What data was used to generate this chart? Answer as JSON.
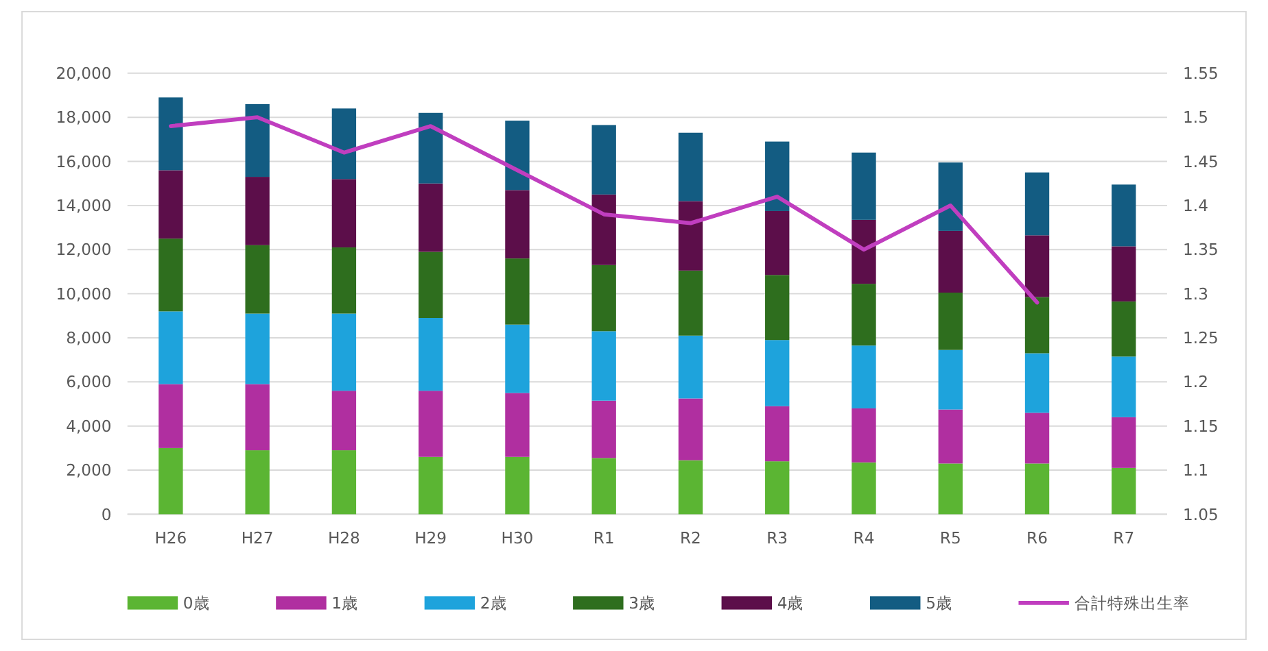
{
  "chart_data": {
    "type": "bar",
    "stacked": true,
    "categories": [
      "H26",
      "H27",
      "H28",
      "H29",
      "H30",
      "R1",
      "R2",
      "R3",
      "R4",
      "R5",
      "R6",
      "R7"
    ],
    "series": [
      {
        "name": "0歳",
        "color": "#5bb533",
        "values": [
          3000,
          2900,
          2900,
          2600,
          2600,
          2550,
          2450,
          2400,
          2350,
          2300,
          2300,
          2100
        ]
      },
      {
        "name": "1歳",
        "color": "#b02fa0",
        "values": [
          2900,
          3000,
          2700,
          3000,
          2900,
          2600,
          2800,
          2500,
          2450,
          2450,
          2300,
          2300
        ]
      },
      {
        "name": "2歳",
        "color": "#1ea3dc",
        "values": [
          3300,
          3200,
          3500,
          3300,
          3100,
          3150,
          2850,
          3000,
          2850,
          2700,
          2700,
          2750
        ]
      },
      {
        "name": "3歳",
        "color": "#2e6e1e",
        "values": [
          3300,
          3100,
          3000,
          3000,
          3000,
          3000,
          2950,
          2950,
          2800,
          2600,
          2550,
          2500
        ]
      },
      {
        "name": "4歳",
        "color": "#5c0e4a",
        "values": [
          3100,
          3100,
          3100,
          3100,
          3100,
          3200,
          3150,
          2900,
          2900,
          2800,
          2800,
          2500
        ]
      },
      {
        "name": "5歳",
        "color": "#135c82",
        "values": [
          3300,
          3300,
          3200,
          3200,
          3150,
          3150,
          3100,
          3150,
          3050,
          3100,
          2850,
          2800
        ]
      },
      {
        "name": "合計特殊出生率",
        "type": "line",
        "axis": "y2",
        "color": "#c03ebf",
        "values": [
          1.49,
          1.5,
          1.46,
          1.49,
          1.44,
          1.39,
          1.38,
          1.41,
          1.35,
          1.4,
          1.29,
          null
        ]
      }
    ],
    "ylim": [
      0,
      20000
    ],
    "yticks": [
      {
        "value": 0,
        "label": "0"
      },
      {
        "value": 2000,
        "label": "2,000"
      },
      {
        "value": 4000,
        "label": "4,000"
      },
      {
        "value": 6000,
        "label": "6,000"
      },
      {
        "value": 8000,
        "label": "8,000"
      },
      {
        "value": 10000,
        "label": "10,000"
      },
      {
        "value": 12000,
        "label": "12,000"
      },
      {
        "value": 14000,
        "label": "14,000"
      },
      {
        "value": 16000,
        "label": "16,000"
      },
      {
        "value": 18000,
        "label": "18,000"
      },
      {
        "value": 20000,
        "label": "20,000"
      }
    ],
    "y2lim": [
      1.05,
      1.55
    ],
    "y2ticks": [
      1.05,
      1.1,
      1.15,
      1.2,
      1.25,
      1.3,
      1.35,
      1.4,
      1.45,
      1.5,
      1.55
    ],
    "grid": "y",
    "legend": "bottom",
    "marker": "none",
    "line_style": "solid"
  }
}
